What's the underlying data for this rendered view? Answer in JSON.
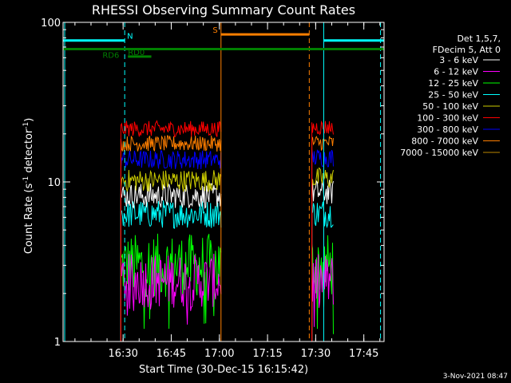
{
  "chart_data": {
    "type": "line",
    "title": "RHESSI Observing Summary Count Rates",
    "xlabel": "Start Time (30-Dec-15 16:15:42)",
    "ylabel": "Count Rate (s⁻¹ detector⁻¹)",
    "ylabel_main": "Count Rate (s",
    "ylabel_sup1": "-1",
    "ylabel_mid": " detector",
    "ylabel_sup2": "-1",
    "ylabel_end": ")",
    "yscale": "log",
    "ylim": [
      1,
      100
    ],
    "xlim_minutes": [
      -3.7,
      96.3
    ],
    "x_ticks": [
      {
        "label": "16:30",
        "minutes": 15
      },
      {
        "label": "16:45",
        "minutes": 30
      },
      {
        "label": "17:00",
        "minutes": 45
      },
      {
        "label": "17:15",
        "minutes": 60
      },
      {
        "label": "17:30",
        "minutes": 75
      },
      {
        "label": "17:45",
        "minutes": 90
      }
    ],
    "y_ticks": [
      {
        "label": "1",
        "value": 1
      },
      {
        "label": "10",
        "value": 10
      },
      {
        "label": "100",
        "value": 100
      }
    ],
    "legend_header": [
      "Det 1,5,7,",
      "FDecim 5, Att 0"
    ],
    "series": [
      {
        "name": "3 - 6 keV",
        "color": "#ffffff",
        "seg1": 8.2,
        "seg2": 8.6,
        "noise": 0.08
      },
      {
        "name": "6 - 12 keV",
        "color": "#ff00ff",
        "seg1": 2.4,
        "seg2": 2.4,
        "noise": 0.17
      },
      {
        "name": "12 - 25 keV",
        "color": "#00ff00",
        "seg1": 3.0,
        "seg2": 3.0,
        "noise": 0.2
      },
      {
        "name": "25 - 50 keV",
        "color": "#00ffff",
        "seg1": 6.3,
        "seg2": 6.4,
        "noise": 0.09
      },
      {
        "name": "50 - 100 keV",
        "color": "#cccc00",
        "seg1": 10.2,
        "seg2": 10.5,
        "noise": 0.07
      },
      {
        "name": "100 - 300 keV",
        "color": "#ff0000",
        "seg1": 21.5,
        "seg2": 22.0,
        "noise": 0.05
      },
      {
        "name": "300 - 800 keV",
        "color": "#0000ff",
        "seg1": 13.8,
        "seg2": 14.2,
        "noise": 0.06
      },
      {
        "name": "800 - 7000 keV",
        "color": "#ff7f00",
        "seg1": 17.4,
        "seg2": 17.6,
        "noise": 0.05
      },
      {
        "name": "7000 - 15000 keV",
        "color": "#bb8800",
        "seg1": null,
        "seg2": null,
        "noise": 0
      }
    ],
    "segments_minutes": [
      [
        14.3,
        45.5
      ],
      [
        73.8,
        80.5
      ]
    ],
    "markers": [
      {
        "label": "N",
        "color": "#00ffff",
        "y_value": 77,
        "ranges_minutes": [
          [
            -3.7,
            15.5
          ],
          [
            77.5,
            96.3
          ]
        ]
      },
      {
        "label": "S",
        "color": "#ff7f00",
        "y_value": 84,
        "ranges_minutes": [
          [
            45.5,
            73.0
          ]
        ]
      },
      {
        "label": "RD6",
        "color": "#008000",
        "y_value": 68,
        "ranges_minutes": [
          [
            -3.7,
            96.3
          ]
        ]
      },
      {
        "label": "RD0",
        "color": "#008000",
        "y_value": 61,
        "ranges_minutes": [
          [
            16.5,
            23.8
          ]
        ]
      }
    ],
    "vlines": [
      {
        "minutes": -3.2,
        "color": "#00ffff",
        "style": "solid"
      },
      {
        "minutes": 15.5,
        "color": "#00ffff",
        "style": "dashed"
      },
      {
        "minutes": 45.5,
        "color": "#ff7f00",
        "style": "solid"
      },
      {
        "minutes": 73.0,
        "color": "#ff7f00",
        "style": "dashed"
      },
      {
        "minutes": 77.5,
        "color": "#00ffff",
        "style": "solid"
      },
      {
        "minutes": 95.2,
        "color": "#00ffff",
        "style": "dashed"
      }
    ],
    "timestamp": "3-Nov-2021 08:47"
  }
}
